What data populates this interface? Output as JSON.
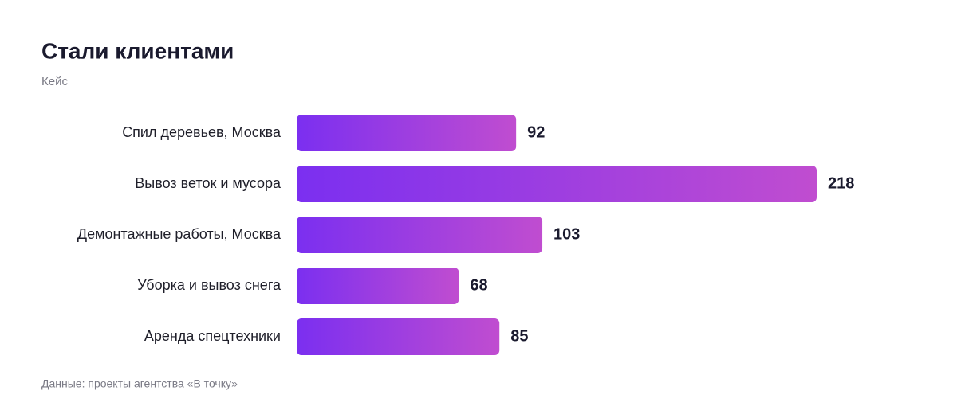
{
  "chart_data": {
    "type": "bar",
    "orientation": "horizontal",
    "title": "Стали клиентами",
    "subtitle": "Кейс",
    "categories": [
      "Спил деревьев, Москва",
      "Вывоз веток и мусора",
      "Демонтажные работы, Москва",
      "Уборка и вывоз снега",
      "Аренда спецтехники"
    ],
    "values": [
      92,
      218,
      103,
      68,
      85
    ],
    "gradient": [
      "#7b2ff0",
      "#c04dd0"
    ],
    "source": "Данные: проекты агентства «В точку»"
  }
}
